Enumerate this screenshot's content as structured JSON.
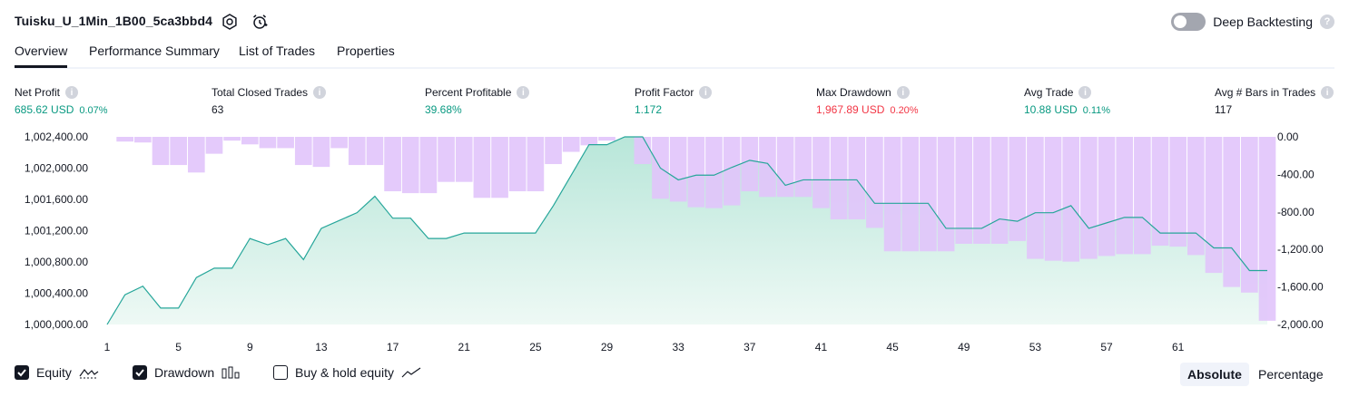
{
  "header": {
    "title": "Tuisku_U_1Min_1B00_5ca3bbd4",
    "deep_backtesting_label": "Deep Backtesting",
    "deep_backtesting_on": false
  },
  "tabs": [
    "Overview",
    "Performance Summary",
    "List of Trades",
    "Properties"
  ],
  "metrics": [
    {
      "label": "Net Profit",
      "value": "685.62 USD",
      "pct": "0.07%",
      "color": "green"
    },
    {
      "label": "Total Closed Trades",
      "value": "63",
      "pct": "",
      "color": "plain"
    },
    {
      "label": "Percent Profitable",
      "value": "39.68%",
      "pct": "",
      "color": "green"
    },
    {
      "label": "Profit Factor",
      "value": "1.172",
      "pct": "",
      "color": "green"
    },
    {
      "label": "Max Drawdown",
      "value": "1,967.89 USD",
      "pct": "0.20%",
      "color": "red"
    },
    {
      "label": "Avg Trade",
      "value": "10.88 USD",
      "pct": "0.11%",
      "color": "green"
    },
    {
      "label": "Avg # Bars in Trades",
      "value": "117",
      "pct": "",
      "color": "plain"
    }
  ],
  "chart_data": {
    "type": "area",
    "x_tick_labels": [
      "1",
      "5",
      "9",
      "13",
      "17",
      "21",
      "25",
      "29",
      "33",
      "37",
      "41",
      "45",
      "49",
      "53",
      "57",
      "61"
    ],
    "left_axis_ticks": [
      "1,002,400.00",
      "1,002,000.00",
      "1,001,600.00",
      "1,001,200.00",
      "1,000,800.00",
      "1,000,400.00",
      "1,000,000.00"
    ],
    "right_axis_ticks": [
      "0.00",
      "-400.00",
      "-800.00",
      "-1,200.00",
      "-1,600.00",
      "-2,000.00"
    ],
    "left_ylim": [
      1000000,
      1002400
    ],
    "right_ylim": [
      -2000,
      0
    ],
    "equity": [
      1000000,
      1000380,
      1000490,
      1000210,
      1000210,
      1000600,
      1000720,
      1000720,
      1001100,
      1001020,
      1001100,
      1000830,
      1001230,
      1001330,
      1001430,
      1001640,
      1001360,
      1001360,
      1001100,
      1001100,
      1001170,
      1001170,
      1001170,
      1001170,
      1001170,
      1001520,
      1001910,
      1002300,
      1002300,
      1002400,
      1002400,
      1002000,
      1001850,
      1001910,
      1001910,
      1002010,
      1002100,
      1002060,
      1001780,
      1001850,
      1001850,
      1001850,
      1001850,
      1001550,
      1001550,
      1001550,
      1001550,
      1001230,
      1001230,
      1001230,
      1001350,
      1001320,
      1001430,
      1001430,
      1001520,
      1001230,
      1001300,
      1001370,
      1001370,
      1001170,
      1001170,
      1001170,
      1000980,
      1000980,
      1000690,
      1000690
    ],
    "drawdown": [
      0,
      -50,
      -60,
      -300,
      -300,
      -380,
      -180,
      -40,
      -80,
      -120,
      -120,
      -300,
      -320,
      -120,
      -300,
      -300,
      -580,
      -600,
      -600,
      -480,
      -480,
      -650,
      -650,
      -580,
      -580,
      -290,
      -160,
      -90,
      -40,
      0,
      -290,
      -660,
      -690,
      -750,
      -760,
      -730,
      -580,
      -640,
      -640,
      -640,
      -760,
      -880,
      -880,
      -970,
      -1220,
      -1220,
      -1220,
      -1220,
      -1140,
      -1140,
      -1140,
      -1110,
      -1300,
      -1320,
      -1330,
      -1300,
      -1270,
      -1250,
      -1250,
      -1160,
      -1170,
      -1260,
      -1450,
      -1600,
      -1660,
      -1960
    ],
    "series": [
      {
        "name": "Equity"
      },
      {
        "name": "Drawdown"
      },
      {
        "name": "Buy & hold equity"
      }
    ]
  },
  "legend": {
    "equity_label": "Equity",
    "drawdown_label": "Drawdown",
    "bh_label": "Buy & hold equity",
    "equity_on": true,
    "drawdown_on": true,
    "bh_on": false
  },
  "modes": {
    "absolute_label": "Absolute",
    "percentage_label": "Percentage",
    "active": "Absolute"
  },
  "colors": {
    "equity_line": "#26a69a",
    "equity_fill": "#c8ece3",
    "drawdown_bar": "#e1c4fb",
    "text": "#131722"
  }
}
